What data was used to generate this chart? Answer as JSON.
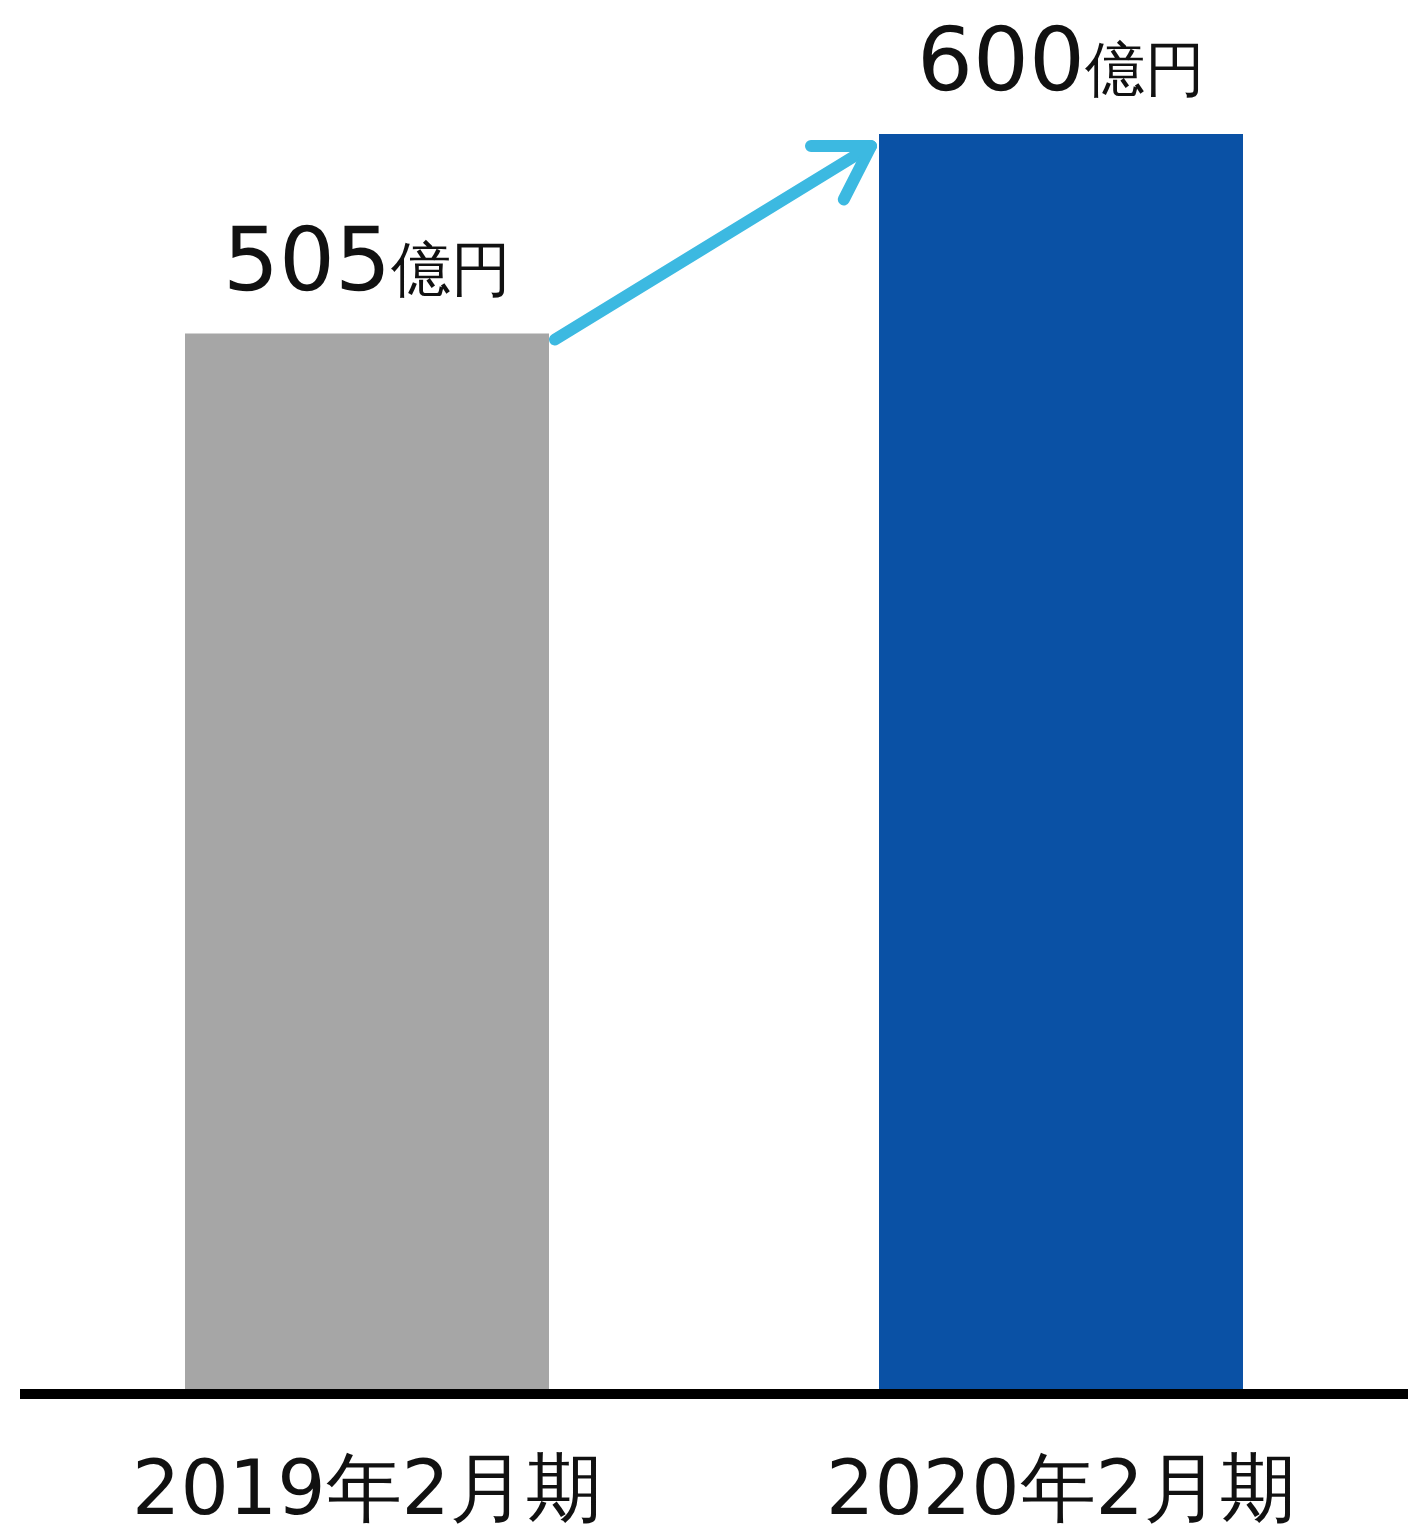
{
  "chart_data": {
    "type": "bar",
    "categories": [
      "2019年2月期",
      "2020年2月期"
    ],
    "values": [
      505,
      600
    ],
    "colors": [
      "#a6a6a6",
      "#0a51a5"
    ],
    "value_labels": [
      "505億円",
      "600億円"
    ]
  }
}
